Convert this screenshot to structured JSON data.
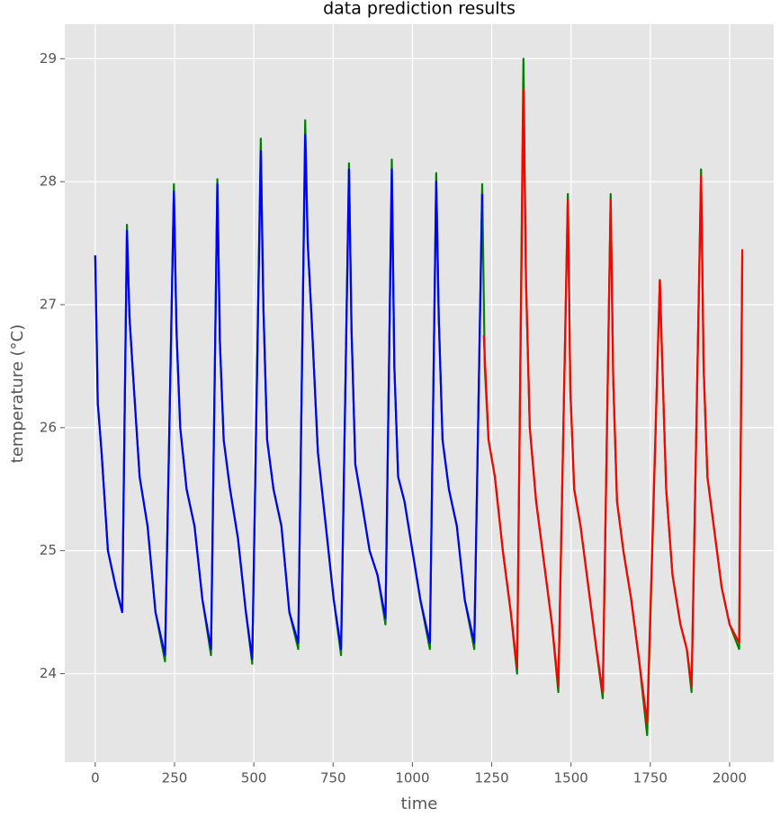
{
  "chart_data": {
    "type": "line",
    "title": "data prediction results",
    "x_label": "time",
    "y_label": "temperature (°C)",
    "xlim": [
      -96,
      2139
    ],
    "ylim": [
      23.28,
      29.28
    ],
    "xticks": [
      0,
      250,
      500,
      750,
      1000,
      1250,
      1500,
      1750,
      2000
    ],
    "yticks": [
      24,
      25,
      26,
      27,
      28,
      29
    ],
    "grid": true,
    "series": [
      {
        "color": "#008000",
        "x": [
          0,
          8,
          20,
          40,
          65,
          85,
          100,
          108,
          120,
          140,
          165,
          190,
          220,
          248,
          256,
          268,
          288,
          313,
          338,
          365,
          385,
          393,
          405,
          425,
          450,
          475,
          495,
          522,
          530,
          542,
          562,
          587,
          612,
          640,
          662,
          670,
          682,
          702,
          727,
          752,
          775,
          800,
          808,
          820,
          840,
          865,
          890,
          915,
          935,
          943,
          955,
          975,
          1000,
          1025,
          1055,
          1075,
          1083,
          1095,
          1115,
          1140,
          1165,
          1195,
          1220,
          1228,
          1240,
          1260,
          1285,
          1310,
          1330,
          1350,
          1358,
          1370,
          1390,
          1415,
          1440,
          1460,
          1490,
          1498,
          1510,
          1530,
          1555,
          1580,
          1600,
          1625,
          1633,
          1645,
          1665,
          1690,
          1715,
          1740,
          1780,
          1788,
          1800,
          1820,
          1845,
          1865,
          1880,
          1910,
          1918,
          1930,
          1950,
          1975,
          2000,
          2030,
          2040
        ],
        "values": [
          27.4,
          26.2,
          25.8,
          25.0,
          24.7,
          24.5,
          27.65,
          26.9,
          26.4,
          25.6,
          25.2,
          24.5,
          24.1,
          27.98,
          26.8,
          26.0,
          25.5,
          25.2,
          24.6,
          24.15,
          28.02,
          26.7,
          25.9,
          25.5,
          25.1,
          24.5,
          24.08,
          28.35,
          27.0,
          25.9,
          25.5,
          25.2,
          24.5,
          24.2,
          28.5,
          27.5,
          26.9,
          25.8,
          25.2,
          24.6,
          24.15,
          28.15,
          26.8,
          25.7,
          25.4,
          25.0,
          24.8,
          24.4,
          28.18,
          26.5,
          25.6,
          25.4,
          25.0,
          24.6,
          24.2,
          28.07,
          26.9,
          25.9,
          25.5,
          25.2,
          24.6,
          24.2,
          27.98,
          26.5,
          25.9,
          25.6,
          25.0,
          24.5,
          24.0,
          29.0,
          27.2,
          26.0,
          25.4,
          24.9,
          24.4,
          23.85,
          27.9,
          26.3,
          25.5,
          25.2,
          24.7,
          24.2,
          23.8,
          27.9,
          26.4,
          25.4,
          25.0,
          24.6,
          24.1,
          23.5,
          27.2,
          26.5,
          25.5,
          24.8,
          24.4,
          24.2,
          23.85,
          28.1,
          26.5,
          25.6,
          25.2,
          24.7,
          24.4,
          24.2,
          27.4
        ]
      },
      {
        "color": "#0000ff",
        "x": [
          0,
          8,
          20,
          40,
          65,
          85,
          100,
          108,
          120,
          140,
          165,
          190,
          220,
          248,
          256,
          268,
          288,
          313,
          338,
          365,
          385,
          393,
          405,
          425,
          450,
          475,
          495,
          522,
          530,
          542,
          562,
          587,
          612,
          640,
          662,
          670,
          682,
          702,
          727,
          752,
          775,
          800,
          808,
          820,
          840,
          865,
          890,
          915,
          935,
          943,
          955,
          975,
          1000,
          1025,
          1055,
          1075,
          1083,
          1095,
          1115,
          1140,
          1165,
          1195,
          1220
        ],
        "values": [
          27.4,
          26.2,
          25.8,
          25.0,
          24.7,
          24.5,
          27.6,
          26.9,
          26.4,
          25.6,
          25.2,
          24.5,
          24.15,
          27.92,
          26.8,
          26.0,
          25.5,
          25.2,
          24.6,
          24.2,
          27.98,
          26.7,
          25.9,
          25.5,
          25.1,
          24.5,
          24.12,
          28.25,
          27.0,
          25.9,
          25.5,
          25.2,
          24.5,
          24.25,
          28.38,
          27.5,
          26.9,
          25.8,
          25.2,
          24.6,
          24.2,
          28.1,
          26.8,
          25.7,
          25.4,
          25.0,
          24.8,
          24.45,
          28.1,
          26.5,
          25.6,
          25.4,
          25.0,
          24.6,
          24.25,
          28.0,
          26.9,
          25.9,
          25.5,
          25.2,
          24.6,
          24.25,
          27.9
        ]
      },
      {
        "color": "#ff0000",
        "x": [
          1225,
          1240,
          1260,
          1285,
          1310,
          1330,
          1350,
          1358,
          1370,
          1390,
          1415,
          1440,
          1460,
          1490,
          1498,
          1510,
          1530,
          1555,
          1580,
          1600,
          1625,
          1633,
          1645,
          1665,
          1690,
          1715,
          1740,
          1780,
          1788,
          1800,
          1820,
          1845,
          1865,
          1880,
          1910,
          1918,
          1930,
          1950,
          1975,
          2000,
          2030,
          2040
        ],
        "values": [
          26.75,
          25.9,
          25.6,
          25.0,
          24.5,
          24.05,
          28.75,
          27.2,
          26.0,
          25.4,
          24.9,
          24.4,
          23.9,
          27.85,
          26.3,
          25.5,
          25.2,
          24.7,
          24.2,
          23.85,
          27.85,
          26.4,
          25.4,
          25.0,
          24.6,
          24.1,
          23.6,
          27.2,
          26.5,
          25.5,
          24.8,
          24.4,
          24.2,
          23.9,
          28.05,
          26.5,
          25.6,
          25.2,
          24.7,
          24.4,
          24.25,
          27.45
        ]
      }
    ]
  }
}
